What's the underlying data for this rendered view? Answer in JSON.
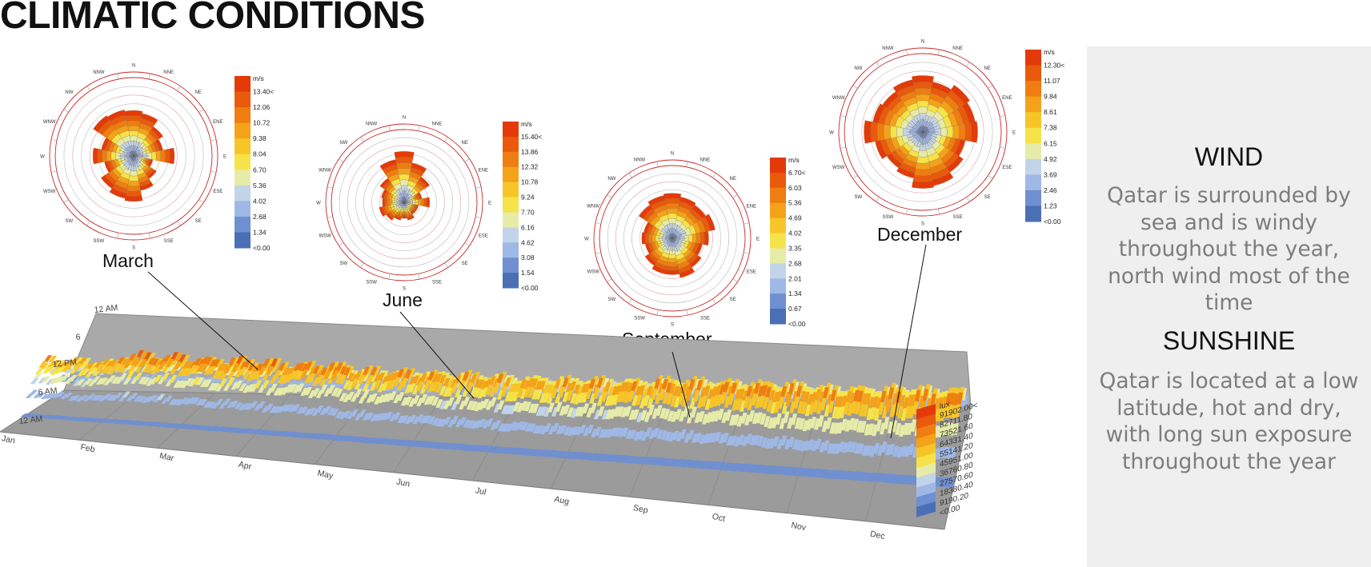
{
  "page": {
    "title": "CLIMATIC CONDITIONS"
  },
  "side_panel": {
    "wind_heading": "WIND",
    "wind_text": "Qatar is surrounded by sea and is windy throughout the year,  north wind most of the time",
    "sun_heading": "SUNSHINE",
    "sun_text": "Qatar is located at a low latitude, hot and dry, with long sun exposure throughout the year"
  },
  "colors": {
    "panel_bg": "#efefef",
    "panel_text": "#7d7d7d",
    "ramp": [
      "#4a6fb5",
      "#6f8fd0",
      "#9fb8e6",
      "#c3d4e8",
      "#e6eca8",
      "#f6e34a",
      "#f7c528",
      "#f3a21a",
      "#ee7e11",
      "#e95a0c",
      "#e43a0a"
    ]
  },
  "chart_data": [
    {
      "type": "wind-rose",
      "caption": "March",
      "unit": "m/s",
      "legend_ticks": [
        "13.40<",
        "12.06",
        "10.72",
        "9.38",
        "8.04",
        "6.70",
        "5.36",
        "4.02",
        "2.68",
        "1.34",
        "<0.00"
      ],
      "directions": [
        "N",
        "NNE",
        "NE",
        "ENE",
        "E",
        "ESE",
        "SE",
        "SSE",
        "S",
        "SSW",
        "SW",
        "WSW",
        "W",
        "WNW",
        "NW",
        "NNW"
      ],
      "frequency": [
        0.58,
        0.55,
        0.45,
        0.38,
        0.52,
        0.25,
        0.35,
        0.45,
        0.58,
        0.55,
        0.5,
        0.38,
        0.52,
        0.42,
        0.62,
        0.6
      ]
    },
    {
      "type": "wind-rose",
      "caption": "June",
      "unit": "m/s",
      "legend_ticks": [
        "15.40<",
        "13.86",
        "12.32",
        "10.78",
        "9.24",
        "7.70",
        "6.16",
        "4.62",
        "3.08",
        "1.54",
        "<0.00"
      ],
      "directions": [
        "N",
        "NNE",
        "NE",
        "ENE",
        "E",
        "ESE",
        "SE",
        "SSE",
        "S",
        "SSW",
        "SW",
        "WSW",
        "W",
        "WNW",
        "NW",
        "NNW"
      ],
      "frequency": [
        0.7,
        0.55,
        0.42,
        0.25,
        0.35,
        0.2,
        0.2,
        0.25,
        0.22,
        0.25,
        0.3,
        0.35,
        0.3,
        0.32,
        0.4,
        0.6
      ]
    },
    {
      "type": "wind-rose",
      "caption": "September",
      "unit": "m/s",
      "legend_ticks": [
        "6.70<",
        "6.03",
        "5.36",
        "4.69",
        "4.02",
        "3.35",
        "2.68",
        "2.01",
        "1.34",
        "0.67",
        "<0.00"
      ],
      "directions": [
        "N",
        "NNE",
        "NE",
        "ENE",
        "E",
        "ESE",
        "SE",
        "SSE",
        "S",
        "SSW",
        "SW",
        "WSW",
        "W",
        "WNW",
        "NW",
        "NNW"
      ],
      "frequency": [
        0.62,
        0.58,
        0.55,
        0.6,
        0.5,
        0.42,
        0.48,
        0.55,
        0.5,
        0.5,
        0.45,
        0.38,
        0.42,
        0.4,
        0.55,
        0.6
      ]
    },
    {
      "type": "wind-rose",
      "caption": "December",
      "unit": "m/s",
      "legend_ticks": [
        "12.30<",
        "11.07",
        "9.84",
        "8.61",
        "7.38",
        "6.15",
        "4.92",
        "3.69",
        "2.46",
        "1.23",
        "<0.00"
      ],
      "directions": [
        "N",
        "NNE",
        "NE",
        "ENE",
        "E",
        "ESE",
        "SE",
        "SSE",
        "S",
        "SSW",
        "SW",
        "WSW",
        "W",
        "WNW",
        "NW",
        "NNW"
      ],
      "frequency": [
        0.72,
        0.65,
        0.72,
        0.68,
        0.7,
        0.55,
        0.62,
        0.7,
        0.72,
        0.6,
        0.55,
        0.62,
        0.75,
        0.65,
        0.62,
        0.68
      ]
    },
    {
      "type": "heatmap",
      "subtype": "3d-surface",
      "unit": "lux",
      "x_categories": [
        "Jan",
        "Feb",
        "Mar",
        "Apr",
        "May",
        "Jun",
        "Jul",
        "Aug",
        "Sep",
        "Oct",
        "Nov",
        "Dec"
      ],
      "y_ticks": [
        "12 AM",
        "6",
        "12 PM",
        "6 AM",
        "12 AM"
      ],
      "legend_ticks": [
        "91902.00<",
        "82711.80",
        "73521.60",
        "64331.40",
        "55141.20",
        "45951.00",
        "36760.80",
        "27570.60",
        "18380.40",
        "9190.20",
        "<0.00"
      ],
      "monthly_peak_level": [
        0.78,
        0.92,
        0.9,
        0.88,
        0.82,
        0.8,
        0.78,
        0.8,
        0.85,
        0.85,
        0.82,
        0.86
      ]
    }
  ]
}
